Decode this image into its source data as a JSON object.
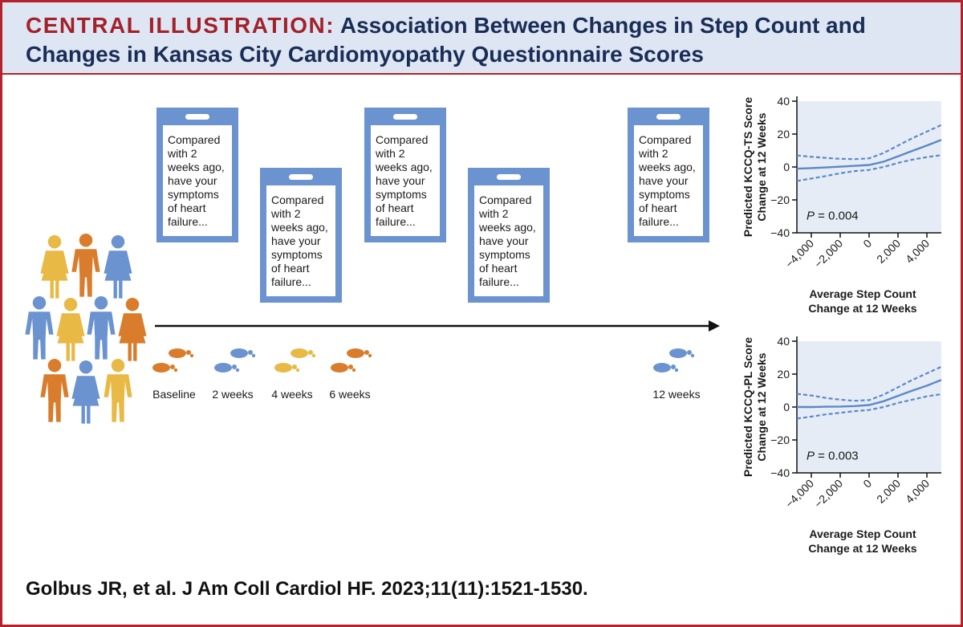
{
  "header": {
    "label": "CENTRAL ILLUSTRATION:",
    "title_line1": "Association Between Changes in Step Count and",
    "title_line2": "Changes in Kansas City Cardiomyopathy Questionnaire Scores"
  },
  "questionnaire": {
    "lines": [
      "Compared",
      "with 2",
      "weeks ago,",
      "have your",
      "symptoms",
      "of heart",
      "failure..."
    ]
  },
  "timeline": {
    "labels": [
      "Baseline",
      "2 weeks",
      "4 weeks",
      "6 weeks",
      "12 weeks"
    ]
  },
  "colors": {
    "card": "#6b93cf",
    "blue": "#6b93cf",
    "orange": "#d97c2b",
    "yellow": "#e8b945",
    "plot_bg": "#e6ecf6",
    "line": "#5b88c7",
    "accent_red": "#b5212b",
    "title_navy": "#1a2d57"
  },
  "icons": {
    "people": "people-group-icon",
    "footprint": "footprints-icon",
    "arrow": "timeline-arrow-icon"
  },
  "chart_data": [
    {
      "type": "line",
      "ylabel_line1": "Predicted KCCQ-TS Score",
      "ylabel_line2": "Change at 12 Weeks",
      "xlabel_line1": "Average Step Count",
      "xlabel_line2": "Change at 12 Weeks",
      "annotation_prefix": "P",
      "annotation_value": " = 0.004",
      "xlim": [
        -5000,
        5000
      ],
      "ylim": [
        -40,
        40
      ],
      "xticks": [
        -4000,
        -2000,
        0,
        2000,
        4000
      ],
      "xtick_labels": [
        "−4,000",
        "−2,000",
        "0",
        "2,000",
        "4,000"
      ],
      "yticks": [
        40,
        20,
        0,
        -20,
        -40
      ],
      "ytick_labels": [
        "40",
        "20",
        "0",
        "−20",
        "−40"
      ],
      "series": [
        {
          "style": "solid",
          "x": [
            -5000,
            -4000,
            -3000,
            -2000,
            -1000,
            0,
            1000,
            2000,
            3000,
            4000,
            5000
          ],
          "y": [
            -1,
            -0.7,
            -0.3,
            0.2,
            0.7,
            1.2,
            3.2,
            6.5,
            9.8,
            13,
            16.5
          ]
        },
        {
          "style": "dashed",
          "x": [
            -5000,
            -4000,
            -3000,
            -2000,
            -1000,
            0,
            1000,
            2000,
            3000,
            4000,
            5000
          ],
          "y": [
            7,
            6.2,
            5.5,
            5,
            4.8,
            5.2,
            8.5,
            13,
            17.5,
            21.5,
            25.5
          ]
        },
        {
          "style": "dashed",
          "x": [
            -5000,
            -4000,
            -3000,
            -2000,
            -1000,
            0,
            1000,
            2000,
            3000,
            4000,
            5000
          ],
          "y": [
            -8.5,
            -7,
            -5.5,
            -3.8,
            -2.5,
            -1.8,
            0,
            2.5,
            4.5,
            6,
            7.2
          ]
        }
      ]
    },
    {
      "type": "line",
      "ylabel_line1": "Predicted KCCQ-PL Score",
      "ylabel_line2": "Change at 12 Weeks",
      "xlabel_line1": "Average Step Count",
      "xlabel_line2": "Change at 12 Weeks",
      "annotation_prefix": "P",
      "annotation_value": " = 0.003",
      "xlim": [
        -5000,
        5000
      ],
      "ylim": [
        -40,
        40
      ],
      "xticks": [
        -4000,
        -2000,
        0,
        2000,
        4000
      ],
      "xtick_labels": [
        "−4,000",
        "−2,000",
        "0",
        "2,000",
        "4,000"
      ],
      "yticks": [
        40,
        20,
        0,
        -20,
        -40
      ],
      "ytick_labels": [
        "40",
        "20",
        "0",
        "−20",
        "−40"
      ],
      "series": [
        {
          "style": "solid",
          "x": [
            -5000,
            -4000,
            -3000,
            -2000,
            -1000,
            0,
            1000,
            2000,
            3000,
            4000,
            5000
          ],
          "y": [
            0,
            0,
            0.2,
            0.3,
            0.6,
            1.2,
            3.5,
            6.8,
            10,
            13,
            16.5
          ]
        },
        {
          "style": "dashed",
          "x": [
            -5000,
            -4000,
            -3000,
            -2000,
            -1000,
            0,
            1000,
            2000,
            3000,
            4000,
            5000
          ],
          "y": [
            8,
            7,
            5.5,
            4.5,
            3.8,
            4.2,
            7.5,
            12,
            16.5,
            20.5,
            24.5
          ]
        },
        {
          "style": "dashed",
          "x": [
            -5000,
            -4000,
            -3000,
            -2000,
            -1000,
            0,
            1000,
            2000,
            3000,
            4000,
            5000
          ],
          "y": [
            -7,
            -5.8,
            -4.5,
            -3.5,
            -2.5,
            -1.8,
            0,
            2.5,
            4.5,
            6.5,
            7.8
          ]
        }
      ]
    }
  ],
  "citation": "Golbus JR, et al. J Am Coll Cardiol HF. 2023;11(11):1521-1530."
}
